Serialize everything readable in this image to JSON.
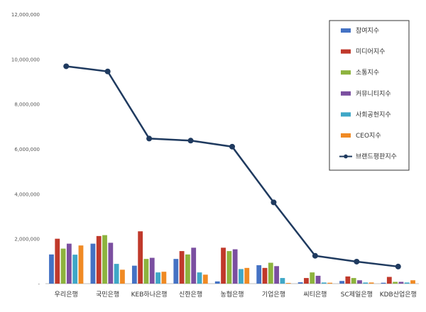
{
  "chart_data": {
    "type": "bar",
    "categories": [
      "우리은행",
      "국민은행",
      "KEB하나은행",
      "신한은행",
      "농협은행",
      "기업은행",
      "씨티은행",
      "SC제일은행",
      "KDB산업은행"
    ],
    "series": [
      {
        "name": "참여지수",
        "color": "#4472C4",
        "values": [
          1300000,
          1780000,
          800000,
          1100000,
          100000,
          820000,
          60000,
          120000,
          40000
        ]
      },
      {
        "name": "미디어지수",
        "color": "#C0392B",
        "values": [
          2000000,
          2120000,
          2330000,
          1450000,
          1600000,
          700000,
          250000,
          320000,
          300000
        ]
      },
      {
        "name": "소통지수",
        "color": "#8DB33E",
        "values": [
          1560000,
          2160000,
          1100000,
          1300000,
          1450000,
          930000,
          500000,
          250000,
          80000
        ]
      },
      {
        "name": "커뮤니티지수",
        "color": "#7B4FA0",
        "values": [
          1780000,
          1820000,
          1150000,
          1600000,
          1530000,
          780000,
          350000,
          150000,
          80000
        ]
      },
      {
        "name": "사회공헌지수",
        "color": "#3FA7C7",
        "values": [
          1290000,
          880000,
          500000,
          500000,
          650000,
          250000,
          50000,
          50000,
          50000
        ]
      },
      {
        "name": "CEO지수",
        "color": "#F08A24",
        "values": [
          1700000,
          620000,
          530000,
          400000,
          700000,
          30000,
          40000,
          50000,
          150000
        ]
      }
    ],
    "line": {
      "name": "브랜드평판지수",
      "color": "#1F3A5F",
      "values": [
        9680000,
        9450000,
        6460000,
        6370000,
        6100000,
        3620000,
        1240000,
        980000,
        760000
      ]
    },
    "ylim": [
      0,
      12000000
    ],
    "yticks": [
      "-",
      "2,000,000",
      "4,000,000",
      "6,000,000",
      "8,000,000",
      "10,000,000",
      "12,000,000"
    ],
    "legend_position": "top-right",
    "grid": false
  }
}
